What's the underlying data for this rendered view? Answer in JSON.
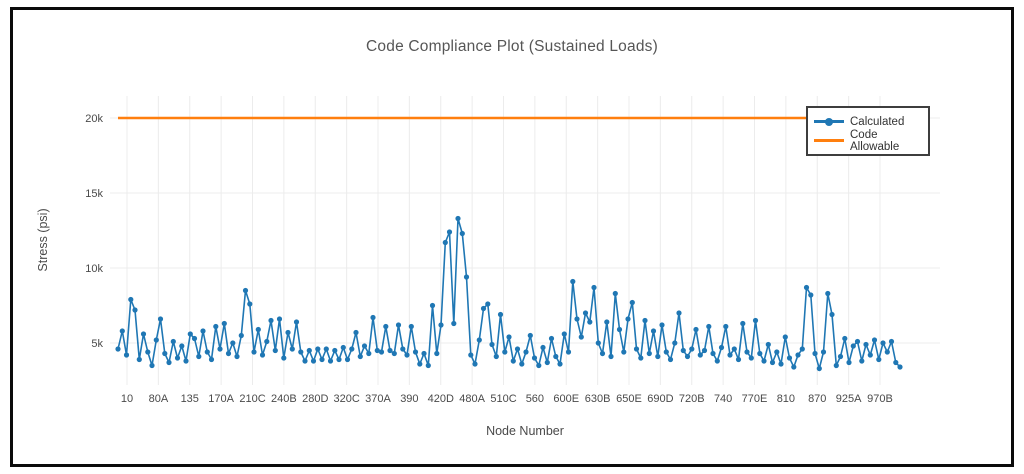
{
  "chart_data": {
    "type": "line",
    "title": "Code Compliance Plot (Sustained Loads)",
    "xlabel": "Node Number",
    "ylabel": "Stress (psi)",
    "grid": true,
    "grid_color": "#ececec",
    "legend_position": "top-right",
    "ylim_psi": [
      2200,
      21200
    ],
    "y_ticks": [
      {
        "psi": 5000,
        "label": "5k"
      },
      {
        "psi": 10000,
        "label": "10k"
      },
      {
        "psi": 15000,
        "label": "15k"
      },
      {
        "psi": 20000,
        "label": "20k"
      }
    ],
    "x_tick_labels": [
      "10",
      "80A",
      "135",
      "170A",
      "210C",
      "240B",
      "280D",
      "320C",
      "370A",
      "390",
      "420D",
      "480A",
      "510C",
      "560",
      "600E",
      "630B",
      "650E",
      "690D",
      "720B",
      "740",
      "770E",
      "810",
      "870",
      "925A",
      "970B"
    ],
    "series": [
      {
        "name": "Calculated",
        "color": "#1f77b4",
        "style": "line+markers",
        "values_psi": [
          4600,
          5800,
          4200,
          7900,
          7200,
          3900,
          5600,
          4400,
          3500,
          5200,
          6600,
          4300,
          3700,
          5100,
          4000,
          4800,
          3800,
          5600,
          5300,
          4100,
          5800,
          4400,
          3900,
          6100,
          4600,
          6300,
          4300,
          5000,
          4100,
          5500,
          8500,
          7600,
          4400,
          5900,
          4200,
          5100,
          6500,
          4500,
          6600,
          4000,
          5700,
          4600,
          6400,
          4400,
          3800,
          4500,
          3800,
          4600,
          3900,
          4600,
          3800,
          4500,
          3900,
          4700,
          3900,
          4600,
          5700,
          4100,
          4800,
          4300,
          6700,
          4500,
          4400,
          6100,
          4500,
          4300,
          6200,
          4600,
          4200,
          6100,
          4400,
          3600,
          4300,
          3500,
          7500,
          4300,
          6200,
          11700,
          12400,
          6300,
          13300,
          12300,
          9400,
          4200,
          3600,
          5200,
          7300,
          7600,
          4900,
          4100,
          6900,
          4400,
          5400,
          3800,
          4600,
          3600,
          4400,
          5500,
          4000,
          3500,
          4700,
          3700,
          5300,
          4100,
          3600,
          5600,
          4400,
          9100,
          6600,
          5400,
          7000,
          6400,
          8700,
          5000,
          4300,
          6400,
          4100,
          8300,
          5900,
          4400,
          6600,
          7700,
          4600,
          4000,
          6500,
          4300,
          5800,
          4100,
          6200,
          4400,
          3900,
          5000,
          7000,
          4500,
          4100,
          4600,
          5900,
          4200,
          4500,
          6100,
          4300,
          3800,
          4700,
          6100,
          4200,
          4600,
          3900,
          6300,
          4400,
          4000,
          6500,
          4300,
          3800,
          4900,
          3700,
          4400,
          3600,
          5400,
          4000,
          3400,
          4200,
          4600,
          8700,
          8200,
          4300,
          3300,
          4400,
          8300,
          6900,
          3500,
          4100,
          5300,
          3700,
          4800,
          5100,
          3800,
          4900,
          4200,
          5200,
          3900,
          5000,
          4400,
          5100,
          3700,
          3400
        ]
      },
      {
        "name": "Code Allowable",
        "color": "#ff7f0e",
        "style": "line",
        "value_psi": 20000
      }
    ]
  }
}
